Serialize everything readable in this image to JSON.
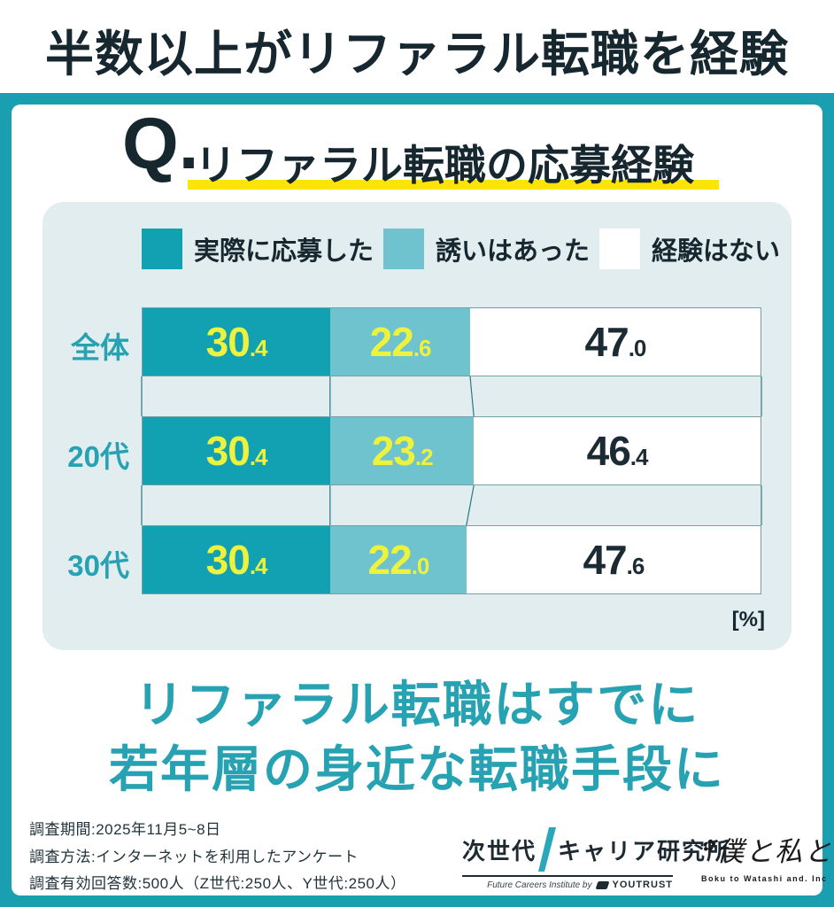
{
  "header": {
    "title": "半数以上がリファラル転職を経験"
  },
  "question": {
    "prefix": "Q.",
    "text": "リファラル転職の応募経験"
  },
  "chart_data": {
    "type": "bar",
    "orientation": "horizontal-stacked",
    "title": "リファラル転職の応募経験",
    "categories": [
      "全体",
      "20代",
      "30代"
    ],
    "series": [
      {
        "name": "実際に応募した",
        "color": "#12a0b3",
        "label_color": "#edf23c",
        "values": [
          30.4,
          30.4,
          30.4
        ]
      },
      {
        "name": "誘いはあった",
        "color": "#6fc3ce",
        "label_color": "#edf23c",
        "values": [
          22.6,
          23.2,
          22.0
        ]
      },
      {
        "name": "経験はない",
        "color": "#ffffff",
        "label_color": "#1c2b33",
        "values": [
          47.0,
          46.4,
          47.6
        ]
      }
    ],
    "xlim": [
      0,
      100
    ],
    "unit_label": "[%]",
    "legend_position": "top",
    "grid": false
  },
  "takeaway": {
    "line1": "リファラル転職はすでに",
    "line2": "若年層の身近な転職手段に"
  },
  "footer": {
    "survey_lines": [
      "調査期間:2025年11月5~8日",
      "調査方法:インターネットを利用したアンケート",
      "調査有効回答数:500人（Z世代:250人、Y世代:250人）"
    ],
    "institute_logo": {
      "part1": "次世代",
      "part2": "キャリア研究所",
      "caption": "Future Careers Institute by",
      "brand": "YOUTRUST"
    },
    "company_logo": {
      "name": "僕と私と",
      "caption": "Boku to Watashi and. Inc"
    }
  },
  "colors": {
    "frame_teal": "#1a9fb0",
    "panel_bg": "#e2edef",
    "accent_teal": "#27a2b2",
    "dark_navy": "#16272f",
    "highlight_yellow": "#fbe407",
    "value_yellow": "#edf23c",
    "connector_line": "#2a7785"
  }
}
